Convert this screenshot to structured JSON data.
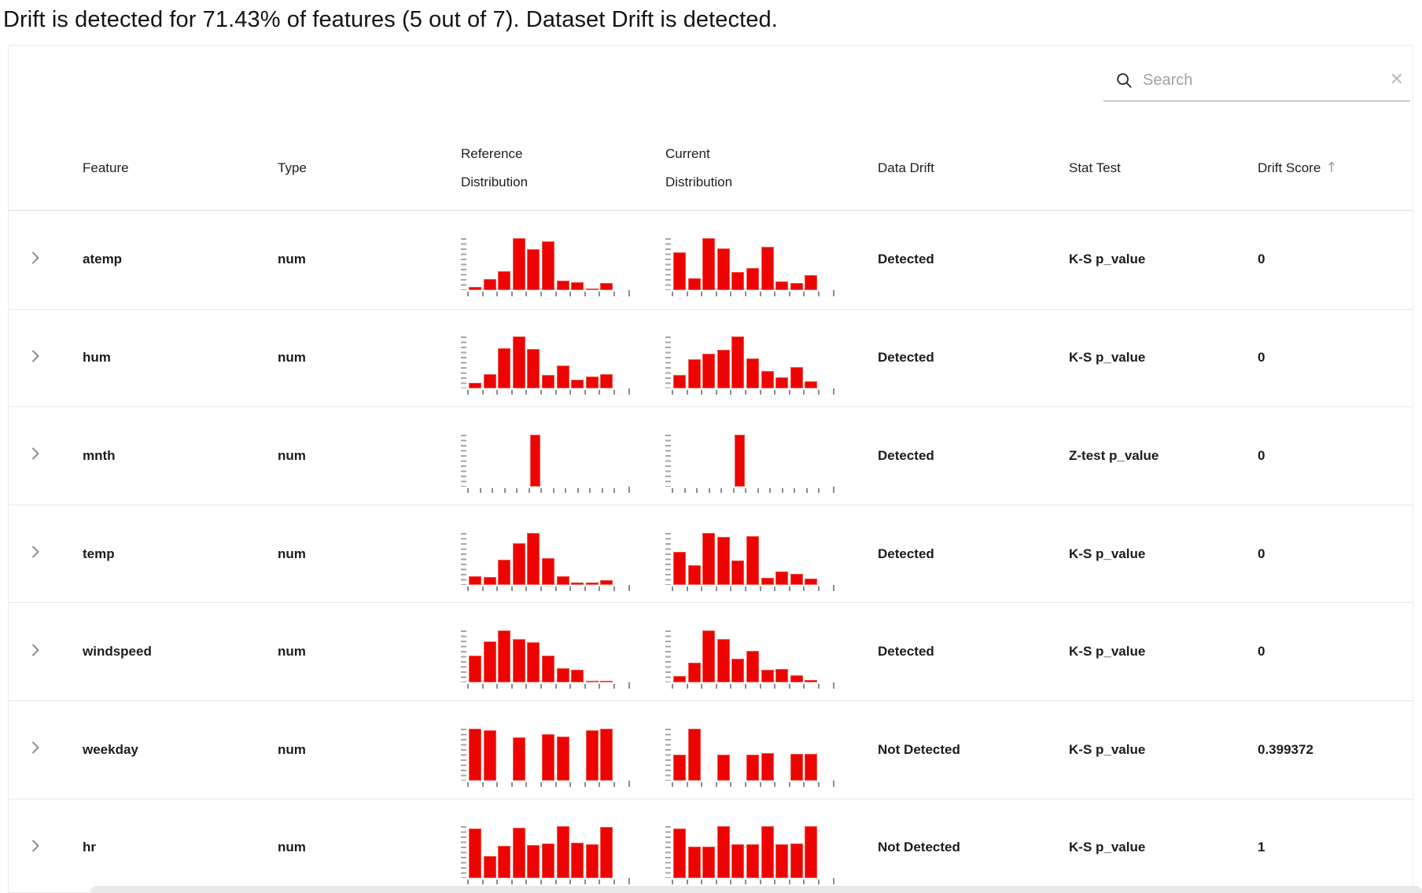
{
  "page": {
    "title": "Drift is detected for 71.43% of features (5 out of 7). Dataset Drift is detected."
  },
  "search": {
    "placeholder": "Search",
    "value": "",
    "clear_glyph": "✕"
  },
  "table": {
    "columns": [
      "Feature",
      "Type",
      "Reference Distribution",
      "Current Distribution",
      "Data Drift",
      "Stat Test",
      "Drift Score"
    ],
    "sort": {
      "column": "Drift Score",
      "direction": "asc",
      "arrow_glyph": "↑"
    },
    "rows": [
      {
        "feature": "atemp",
        "type": "num",
        "data_drift": "Detected",
        "stat_test": "K-S p_value",
        "drift_score": "0"
      },
      {
        "feature": "hum",
        "type": "num",
        "data_drift": "Detected",
        "stat_test": "K-S p_value",
        "drift_score": "0"
      },
      {
        "feature": "mnth",
        "type": "num",
        "data_drift": "Detected",
        "stat_test": "Z-test p_value",
        "drift_score": "0"
      },
      {
        "feature": "temp",
        "type": "num",
        "data_drift": "Detected",
        "stat_test": "K-S p_value",
        "drift_score": "0"
      },
      {
        "feature": "windspeed",
        "type": "num",
        "data_drift": "Detected",
        "stat_test": "K-S p_value",
        "drift_score": "0"
      },
      {
        "feature": "weekday",
        "type": "num",
        "data_drift": "Not Detected",
        "stat_test": "K-S p_value",
        "drift_score": "0.399372"
      },
      {
        "feature": "hr",
        "type": "num",
        "data_drift": "Not Detected",
        "stat_test": "K-S p_value",
        "drift_score": "1"
      }
    ]
  },
  "chart_data": [
    {
      "type": "bar",
      "feature": "atemp",
      "slots": 10,
      "ylabel": "",
      "xlabel": "",
      "note": "mini histogram, bar heights normalized 0-1, no axis labels shown",
      "reference": [
        0.06,
        0.21,
        0.37,
        1.0,
        0.79,
        0.94,
        0.18,
        0.15,
        0.03,
        0.14
      ],
      "current": [
        0.72,
        0.22,
        1.0,
        0.8,
        0.35,
        0.42,
        0.84,
        0.17,
        0.13,
        0.29
      ]
    },
    {
      "type": "bar",
      "feature": "hum",
      "slots": 10,
      "reference": [
        0.1,
        0.28,
        0.78,
        1.0,
        0.76,
        0.26,
        0.44,
        0.16,
        0.23,
        0.27
      ],
      "current": [
        0.25,
        0.56,
        0.66,
        0.74,
        1.0,
        0.57,
        0.34,
        0.21,
        0.41,
        0.13
      ]
    },
    {
      "type": "bar",
      "feature": "mnth",
      "slots": 12,
      "reference": [
        null,
        null,
        null,
        null,
        null,
        1.0,
        null,
        null,
        null,
        null,
        null,
        null
      ],
      "current": [
        null,
        null,
        null,
        null,
        null,
        1.0,
        null,
        null,
        null,
        null,
        null,
        null
      ]
    },
    {
      "type": "bar",
      "feature": "temp",
      "slots": 10,
      "reference": [
        0.17,
        0.15,
        0.48,
        0.8,
        1.0,
        0.52,
        0.16,
        0.04,
        0.05,
        0.09
      ],
      "current": [
        0.64,
        0.38,
        1.0,
        0.93,
        0.47,
        0.94,
        0.13,
        0.26,
        0.21,
        0.12
      ]
    },
    {
      "type": "bar",
      "feature": "windspeed",
      "slots": 10,
      "reference": [
        0.52,
        0.79,
        1.0,
        0.84,
        0.78,
        0.52,
        0.28,
        0.24,
        0.03,
        0.02
      ],
      "current": [
        0.12,
        0.38,
        1.0,
        0.84,
        0.45,
        0.6,
        0.24,
        0.25,
        0.13,
        0.04
      ]
    },
    {
      "type": "bar",
      "feature": "weekday",
      "slots": 10,
      "reference": [
        1.0,
        0.97,
        null,
        0.84,
        null,
        0.89,
        0.85,
        null,
        0.97,
        1.0
      ],
      "current": [
        0.5,
        1.0,
        null,
        0.5,
        null,
        0.5,
        0.53,
        null,
        0.52,
        0.52
      ]
    },
    {
      "type": "bar",
      "feature": "hr",
      "slots": 10,
      "reference": [
        0.95,
        0.43,
        0.62,
        0.97,
        0.64,
        0.66,
        1.0,
        0.68,
        0.65,
        0.98
      ],
      "current": [
        0.95,
        0.6,
        0.6,
        1.0,
        0.65,
        0.65,
        1.0,
        0.65,
        0.66,
        1.0
      ]
    }
  ],
  "colors": {
    "bar_red": "#ed0400",
    "tick_gray": "#8d8d8d",
    "row_separator": "#e8e8e8",
    "text": "#1c1c1c"
  }
}
